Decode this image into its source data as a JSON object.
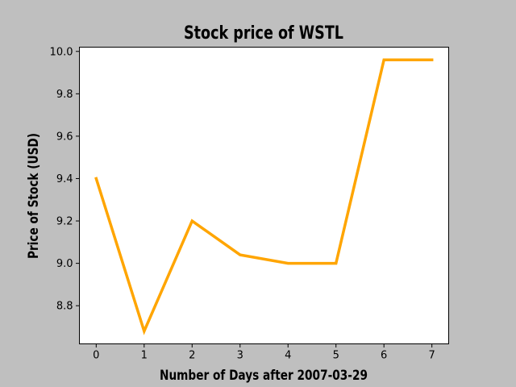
{
  "chart_data": {
    "type": "line",
    "title": "Stock price of WSTL",
    "xlabel": "Number of Days after 2007-03-29",
    "ylabel": "Price of Stock (USD)",
    "x": [
      0,
      1,
      2,
      3,
      4,
      5,
      6,
      7
    ],
    "series": [
      {
        "values": [
          9.4,
          8.68,
          9.2,
          9.04,
          9.0,
          9.0,
          9.96,
          9.96
        ],
        "color": "#ffa500"
      }
    ],
    "xlim": [
      -0.35,
      7.35
    ],
    "ylim": [
      8.62,
      10.02
    ],
    "xticks": [
      "0",
      "1",
      "2",
      "3",
      "4",
      "5",
      "6",
      "7"
    ],
    "yticks": [
      "8.8",
      "9.0",
      "9.2",
      "9.4",
      "9.6",
      "9.8",
      "10.0"
    ],
    "ytick_values": [
      8.8,
      9.0,
      9.2,
      9.4,
      9.6,
      9.8,
      10.0
    ],
    "grid": false,
    "background_color": "#bfbfbf",
    "plot_background_color": "#ffffff"
  }
}
